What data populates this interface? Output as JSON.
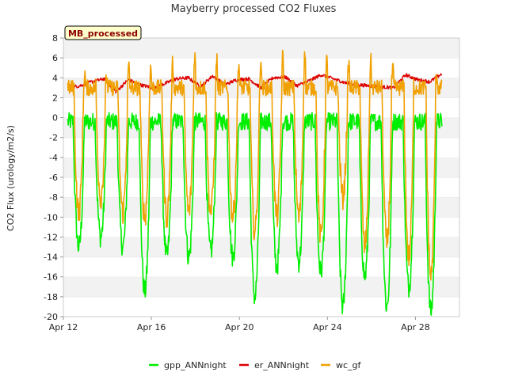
{
  "chart_data": {
    "type": "line",
    "title": "Mayberry processed CO2 Fluxes",
    "tag_label": "MB_processed",
    "xlabel": "",
    "ylabel": "CO2 Flux (urology/m2/s)",
    "ylim": [
      -20,
      8
    ],
    "xlim": [
      0,
      18
    ],
    "yticks": [
      -20,
      -18,
      -16,
      -14,
      -12,
      -10,
      -8,
      -6,
      -4,
      -2,
      0,
      2,
      4,
      6,
      8
    ],
    "xticks": [
      {
        "at": 0,
        "label": "Apr 12"
      },
      {
        "at": 4,
        "label": "Apr 16"
      },
      {
        "at": 8,
        "label": "Apr 20"
      },
      {
        "at": 12,
        "label": "Apr 24"
      },
      {
        "at": 16,
        "label": "Apr 28"
      }
    ],
    "x_start": 0.2,
    "x_end": 17.2,
    "grid": "horizontal alternating bands",
    "legend": "bottom-center",
    "series": [
      {
        "name": "gpp_ANNnight",
        "color": "#00ee00",
        "night": 0.0,
        "min_daily": [
          -13,
          -12,
          -13,
          -17.5,
          -14,
          -14,
          -13.5,
          -14,
          -18,
          -15,
          -14.5,
          -15.5,
          -19,
          -16,
          -19,
          -17,
          -19.5
        ],
        "values": [
          0,
          -0.5,
          -0.3,
          -1,
          -1.5,
          -13,
          -1,
          -11,
          -12.5,
          -0.5,
          -1,
          -13,
          -0.5,
          -0.2,
          -17.5,
          -1,
          -0.5,
          -14,
          -0.5,
          -0.3,
          -14,
          -0.5,
          -0.5,
          -13.5,
          -0.3,
          0,
          -14,
          0.3,
          -0.2,
          -18,
          0.5,
          0,
          -15,
          0.2,
          0,
          -14.5,
          0.4,
          0.5,
          -15.5,
          -0.3,
          0,
          -19,
          0.2,
          -0.5,
          -16,
          -0.2,
          0,
          -19,
          -0.4,
          0,
          -17,
          -0.5,
          0,
          -19.5,
          0.5
        ]
      },
      {
        "name": "er_ANNnight",
        "color": "#dd0000",
        "values": [
          3.0,
          3.2,
          3.6,
          3.9,
          2.6,
          3.8,
          3.3,
          3.0,
          3.4,
          3.9,
          4.0,
          3.1,
          4.2,
          3.3,
          3.8,
          3.9,
          3.0,
          4.0,
          4.1,
          3.2,
          3.7,
          4.3,
          3.9,
          3.5,
          3.3,
          3.2,
          3.1,
          3.0,
          4.3,
          3.8,
          3.6,
          4.4
        ]
      },
      {
        "name": "wc_gf",
        "color": "#f0a000",
        "night": 3.0,
        "min_daily": [
          -9.5,
          -8,
          -9.5,
          -10,
          -10,
          -9.5,
          -9.5,
          -10,
          -11.5,
          -10,
          -10,
          -12,
          -8,
          -13,
          -12.5,
          -14,
          -16
        ],
        "max_daily": [
          4.5,
          4,
          5.2,
          5,
          5.5,
          6.5,
          6,
          5.5,
          6,
          6.2,
          7,
          5.8,
          5.5,
          5.8,
          5,
          3,
          4.2
        ]
      }
    ]
  }
}
